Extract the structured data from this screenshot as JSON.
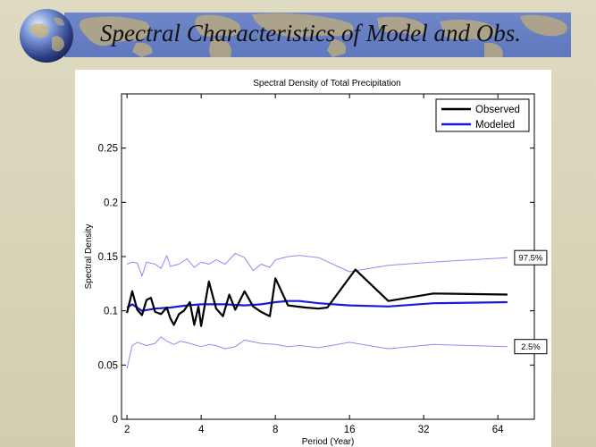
{
  "slide": {
    "title": "Spectral Characteristics of Model and Obs."
  },
  "colors": {
    "observed": "#000000",
    "modeled": "#1a1adb",
    "confidence": "#8c8cf2",
    "banner": "#6a82c6",
    "background": "#d6d2b4"
  },
  "icons": {
    "globe": "globe-icon",
    "world_map": "world-map-decoration"
  },
  "chart_data": {
    "type": "line",
    "title": "Spectral Density of Total Precipitation",
    "xlabel": "Period (Year)",
    "ylabel": "Spectral Density",
    "x_scale": "log2",
    "xlim": [
      1.9,
      90
    ],
    "ylim": [
      0,
      0.3
    ],
    "x_ticks": [
      2,
      4,
      8,
      16,
      32,
      64
    ],
    "x_tick_labels": [
      "2",
      "4",
      "8",
      "16",
      "32",
      "64"
    ],
    "y_ticks": [
      0,
      0.05,
      0.1,
      0.15,
      0.2,
      0.25
    ],
    "y_tick_labels": [
      "0",
      "0.05",
      "0.1",
      "0.15",
      "0.2",
      "0.25"
    ],
    "legend": {
      "position": "top-right",
      "entries": [
        "Observed",
        "Modeled"
      ]
    },
    "series": [
      {
        "name": "Observed",
        "color": "#000000",
        "x": [
          2.0,
          2.1,
          2.2,
          2.3,
          2.4,
          2.5,
          2.6,
          2.75,
          2.9,
          3.0,
          3.1,
          3.25,
          3.4,
          3.6,
          3.75,
          3.9,
          4.0,
          4.3,
          4.6,
          4.9,
          5.2,
          5.5,
          6.0,
          6.5,
          7.0,
          7.6,
          8.0,
          9.0,
          10.6,
          12.0,
          13.0,
          16.9,
          23.0,
          35.0,
          70.0
        ],
        "y": [
          0.098,
          0.118,
          0.101,
          0.096,
          0.11,
          0.112,
          0.099,
          0.097,
          0.103,
          0.093,
          0.087,
          0.097,
          0.1,
          0.108,
          0.087,
          0.104,
          0.086,
          0.127,
          0.102,
          0.095,
          0.115,
          0.101,
          0.118,
          0.104,
          0.099,
          0.095,
          0.13,
          0.105,
          0.103,
          0.102,
          0.103,
          0.138,
          0.109,
          0.116,
          0.115
        ]
      },
      {
        "name": "Modeled",
        "color": "#1a1adb",
        "x": [
          2.0,
          2.1,
          2.3,
          2.6,
          3.0,
          3.5,
          4.0,
          5.0,
          6.0,
          7.0,
          8.0,
          9.0,
          10.0,
          12.0,
          16.0,
          23.0,
          35.0,
          70.0
        ],
        "y": [
          0.103,
          0.106,
          0.1,
          0.102,
          0.103,
          0.105,
          0.106,
          0.106,
          0.105,
          0.106,
          0.108,
          0.109,
          0.109,
          0.107,
          0.105,
          0.104,
          0.107,
          0.108
        ]
      },
      {
        "name": "97.5%",
        "color": "#8c8cf2",
        "label": "97.5%",
        "x": [
          2.0,
          2.1,
          2.2,
          2.3,
          2.4,
          2.6,
          2.75,
          2.9,
          3.0,
          3.25,
          3.5,
          3.75,
          4.0,
          4.3,
          4.6,
          5.0,
          5.5,
          6.0,
          6.5,
          7.0,
          7.6,
          8.0,
          9.0,
          10.0,
          12.0,
          16.0,
          23.0,
          35.0,
          70.0
        ],
        "y": [
          0.143,
          0.145,
          0.144,
          0.132,
          0.145,
          0.143,
          0.139,
          0.151,
          0.141,
          0.143,
          0.148,
          0.14,
          0.145,
          0.143,
          0.147,
          0.143,
          0.153,
          0.149,
          0.137,
          0.143,
          0.14,
          0.147,
          0.15,
          0.151,
          0.149,
          0.136,
          0.142,
          0.145,
          0.149
        ]
      },
      {
        "name": "2.5%",
        "color": "#8c8cf2",
        "label": "2.5%",
        "x": [
          2.0,
          2.1,
          2.2,
          2.4,
          2.6,
          2.75,
          2.9,
          3.1,
          3.3,
          3.6,
          4.0,
          4.3,
          4.6,
          5.0,
          5.5,
          6.0,
          7.0,
          8.0,
          9.0,
          10.0,
          12.0,
          16.0,
          23.0,
          35.0,
          70.0
        ],
        "y": [
          0.047,
          0.068,
          0.071,
          0.068,
          0.07,
          0.076,
          0.072,
          0.069,
          0.072,
          0.07,
          0.067,
          0.069,
          0.068,
          0.065,
          0.067,
          0.073,
          0.07,
          0.069,
          0.067,
          0.068,
          0.066,
          0.071,
          0.065,
          0.069,
          0.067
        ]
      }
    ]
  }
}
